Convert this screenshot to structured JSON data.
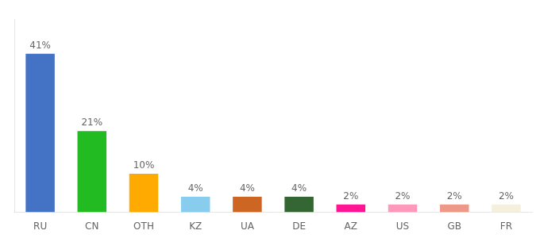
{
  "chart_data": {
    "type": "bar",
    "categories": [
      "RU",
      "CN",
      "OTH",
      "KZ",
      "UA",
      "DE",
      "AZ",
      "US",
      "GB",
      "FR"
    ],
    "values": [
      41,
      21,
      10,
      4,
      4,
      4,
      2,
      2,
      2,
      2
    ],
    "value_labels": [
      "41%",
      "21%",
      "10%",
      "4%",
      "4%",
      "4%",
      "2%",
      "2%",
      "2%",
      "2%"
    ],
    "colors": [
      "#4472c4",
      "#22bb22",
      "#ffaa00",
      "#88ccee",
      "#cc6622",
      "#336633",
      "#ff1493",
      "#ff99bb",
      "#ee9988",
      "#f5f0dc"
    ],
    "ylim": [
      0,
      50
    ],
    "data_labels": true,
    "tick_labels": "x",
    "grid": false
  }
}
